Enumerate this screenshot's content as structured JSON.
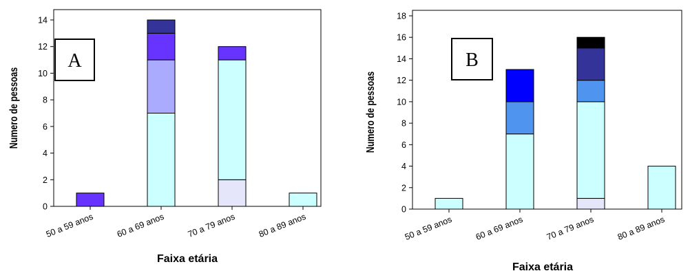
{
  "chart_data": [
    {
      "type": "bar",
      "stacked": true,
      "panel_label": "A",
      "categories": [
        "50 a 59 anos",
        "60 a 69 anos",
        "70 a 79 anos",
        "80 a 89 anos"
      ],
      "xlabel": "Faixa etária",
      "ylabel": "Numero de pessoas",
      "ylim": [
        0,
        14
      ],
      "yticks": [
        0,
        2,
        4,
        6,
        8,
        10,
        12,
        14
      ],
      "series": [
        {
          "color": "#e6e6fa",
          "values": [
            0,
            0,
            2,
            0
          ]
        },
        {
          "color": "#ccffff",
          "values": [
            0,
            7,
            9,
            1
          ]
        },
        {
          "color": "#aaaaff",
          "values": [
            0,
            4,
            0,
            0
          ]
        },
        {
          "color": "#6633ff",
          "values": [
            1,
            2,
            1,
            0
          ]
        },
        {
          "color": "#333399",
          "values": [
            0,
            1,
            0,
            0
          ]
        }
      ]
    },
    {
      "type": "bar",
      "stacked": true,
      "panel_label": "B",
      "categories": [
        "50 a 59 anos",
        "60 a 69 anos",
        "70 a 79 anos",
        "80 a 89 anos"
      ],
      "xlabel": "Faixa etária",
      "ylabel": "Numero de pessoas",
      "ylim": [
        0,
        18
      ],
      "yticks": [
        0,
        2,
        4,
        6,
        8,
        10,
        12,
        14,
        16,
        18
      ],
      "series": [
        {
          "color": "#e6e6fa",
          "values": [
            0,
            0,
            1,
            0
          ]
        },
        {
          "color": "#ccffff",
          "values": [
            1,
            7,
            9,
            4
          ]
        },
        {
          "color": "#4f95f0",
          "values": [
            0,
            3,
            2,
            0
          ]
        },
        {
          "color": "#0000ff",
          "values": [
            0,
            3,
            0,
            0
          ]
        },
        {
          "color": "#333399",
          "values": [
            0,
            0,
            3,
            0
          ]
        },
        {
          "color": "#000000",
          "values": [
            0,
            0,
            1,
            0
          ]
        }
      ]
    }
  ]
}
